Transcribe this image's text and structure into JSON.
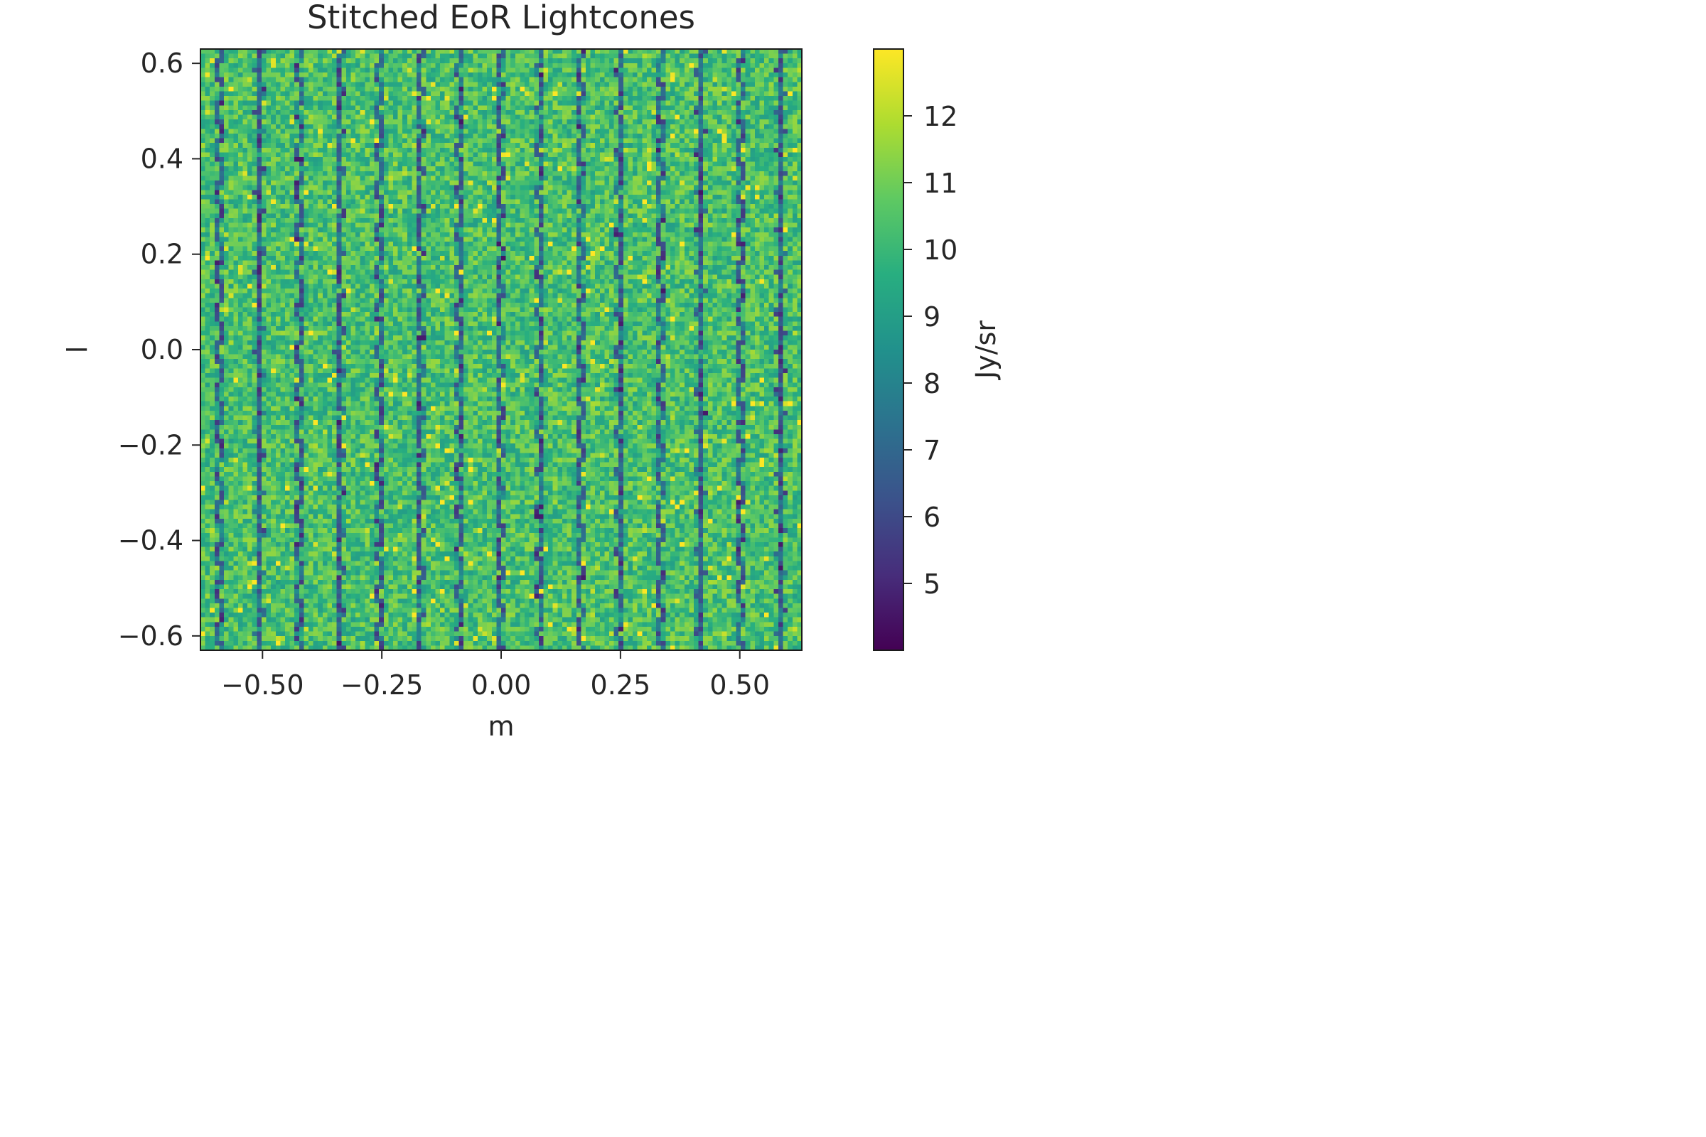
{
  "chart_data": {
    "type": "heatmap",
    "title": "Stitched EoR Lightcones",
    "xlabel": "m",
    "ylabel": "l",
    "xlim": [
      -0.63,
      0.63
    ],
    "ylim": [
      -0.63,
      0.63
    ],
    "x_ticks": [
      -0.5,
      -0.25,
      0.0,
      0.25,
      0.5
    ],
    "x_tick_labels": [
      "−0.50",
      "−0.25",
      "0.00",
      "0.25",
      "0.50"
    ],
    "y_ticks": [
      0.6,
      0.4,
      0.2,
      0.0,
      -0.2,
      -0.4,
      -0.6
    ],
    "y_tick_labels": [
      "0.6",
      "0.4",
      "0.2",
      "0.0",
      "−0.2",
      "−0.4",
      "−0.6"
    ],
    "grid": false,
    "colormap": "viridis",
    "colorbar": {
      "label": "Jy/sr",
      "range": [
        4.0,
        13.0
      ],
      "ticks": [
        12,
        11,
        10,
        9,
        8,
        7,
        6,
        5
      ],
      "tick_labels": [
        "12",
        "11",
        "10",
        "9",
        "8",
        "7",
        "6",
        "5"
      ]
    },
    "grid_shape": [
      128,
      128
    ],
    "value_range": [
      4.0,
      13.0
    ],
    "typical_value": 10.3,
    "pattern_description_note": "",
    "tile_columns": 15,
    "tile_rows": 15
  }
}
